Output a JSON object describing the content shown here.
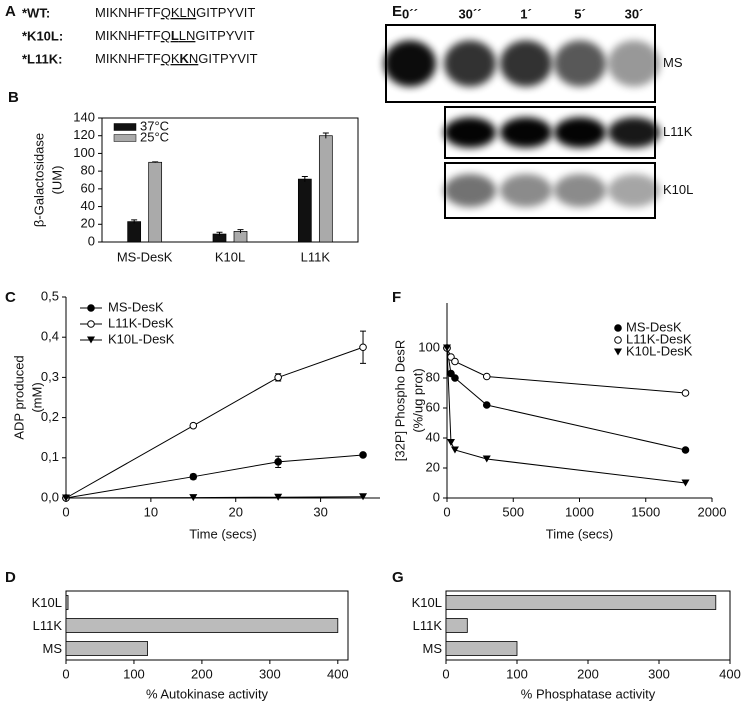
{
  "sequence_panel": {
    "panel": "A",
    "rows": [
      {
        "label": "*WT:",
        "segments": [
          {
            "text": "MIKNHFTF",
            "style": "plain"
          },
          {
            "text": "QKLN",
            "style": "underline"
          },
          {
            "text": "GITPYVIT",
            "style": "plain"
          }
        ]
      },
      {
        "label": "*K10L:",
        "segments": [
          {
            "text": "MIKNHFTF",
            "style": "plain"
          },
          {
            "text": "Q",
            "style": "underline"
          },
          {
            "text": "L",
            "style": "underline-bold"
          },
          {
            "text": "LN",
            "style": "underline"
          },
          {
            "text": "GITPYVIT",
            "style": "plain"
          }
        ]
      },
      {
        "label": "*L11K:",
        "segments": [
          {
            "text": "MIKNHFTF",
            "style": "plain"
          },
          {
            "text": "QK",
            "style": "underline"
          },
          {
            "text": "K",
            "style": "underline-bold"
          },
          {
            "text": "N",
            "style": "underline"
          },
          {
            "text": "GITPYVIT",
            "style": "plain"
          }
        ]
      }
    ]
  },
  "blot_panel": {
    "panel": "E",
    "lanes": [
      "0´´",
      "30´´",
      "1´",
      "5´",
      "30´"
    ],
    "rows": [
      "MS",
      "L11K",
      "K10L"
    ]
  },
  "chart_data": [
    {
      "type": "bar",
      "panel": "B",
      "ylabel": [
        "β-Galactosidase",
        "(UM)"
      ],
      "categories": [
        "MS-DesK",
        "K10L",
        "L11K"
      ],
      "series": [
        {
          "name": "37°C",
          "color": "#111111",
          "values": [
            23,
            9,
            71
          ],
          "errors": [
            2,
            2,
            3
          ]
        },
        {
          "name": "25°C",
          "color": "#aaaaaa",
          "values": [
            90,
            12,
            120
          ],
          "errors": [
            0.5,
            2,
            3
          ]
        }
      ],
      "ylim": [
        0,
        140
      ],
      "yticks": [
        0,
        20,
        40,
        60,
        80,
        100,
        120,
        140
      ],
      "legend": "top-left"
    },
    {
      "type": "line",
      "panel": "C",
      "xlabel": "Time (secs)",
      "ylabel": [
        "ADP produced",
        "(mM)"
      ],
      "x": [
        0,
        15,
        25,
        35
      ],
      "series": [
        {
          "name": "MS-DesK",
          "marker": "filled-circle",
          "color": "#000000",
          "values": [
            0,
            0.053,
            0.09,
            0.107
          ],
          "errors": [
            0,
            0.006,
            0.014,
            0.003
          ]
        },
        {
          "name": "L11K-DesK",
          "marker": "open-circle",
          "color": "#000000",
          "values": [
            0,
            0.18,
            0.3,
            0.375
          ],
          "errors": [
            0,
            0.005,
            0.009,
            0.04
          ]
        },
        {
          "name": "K10L-DesK",
          "marker": "triangle-down",
          "color": "#000000",
          "values": [
            0,
            0.001,
            0.002,
            0.003
          ]
        }
      ],
      "xlim": [
        0,
        37
      ],
      "xticks": [
        0,
        10,
        20,
        30
      ],
      "ylim": [
        0,
        0.5
      ],
      "yticks": [
        {
          "value": 0,
          "label": "0,0"
        },
        {
          "value": 0.1,
          "label": "0,1"
        },
        {
          "value": 0.2,
          "label": "0,2"
        },
        {
          "value": 0.3,
          "label": "0,3"
        },
        {
          "value": 0.4,
          "label": "0,4"
        },
        {
          "value": 0.5,
          "label": "0,5"
        }
      ],
      "legend": "top-left"
    },
    {
      "type": "line",
      "panel": "F",
      "xlabel": "Time (secs)",
      "ylabel": [
        "[32P] Phospho DesR",
        "(%/ug prot)"
      ],
      "x": [
        0,
        30,
        60,
        300,
        1800
      ],
      "series": [
        {
          "name": "MS-DesK",
          "marker": "filled-circle",
          "color": "#000000",
          "values": [
            100,
            83,
            80,
            62,
            32
          ]
        },
        {
          "name": "L11K-DesK",
          "marker": "open-circle",
          "color": "#000000",
          "values": [
            100,
            94,
            91,
            81,
            70
          ]
        },
        {
          "name": "K10L-DesK",
          "marker": "triangle-down",
          "color": "#000000",
          "values": [
            100,
            37,
            32,
            26,
            10
          ]
        }
      ],
      "xlim": [
        0,
        2000
      ],
      "xticks": [
        0,
        500,
        1000,
        1500,
        2000
      ],
      "ylim": [
        0,
        130
      ],
      "yticks": [
        0,
        20,
        40,
        60,
        80,
        100
      ],
      "legend": "top-right"
    },
    {
      "type": "hbar",
      "panel": "D",
      "xlabel": "% Autokinase activity",
      "categories": [
        "K10L",
        "L11K",
        "MS"
      ],
      "values": [
        3,
        400,
        120
      ],
      "color": "#bbbbbb",
      "xlim": [
        0,
        415
      ],
      "xticks": [
        0,
        100,
        200,
        300,
        400
      ]
    },
    {
      "type": "hbar",
      "panel": "G",
      "xlabel": "% Phosphatase activity",
      "categories": [
        "K10L",
        "L11K",
        "MS"
      ],
      "values": [
        380,
        30,
        100
      ],
      "color": "#bbbbbb",
      "xlim": [
        0,
        400
      ],
      "xticks": [
        0,
        100,
        200,
        300,
        400
      ]
    }
  ]
}
